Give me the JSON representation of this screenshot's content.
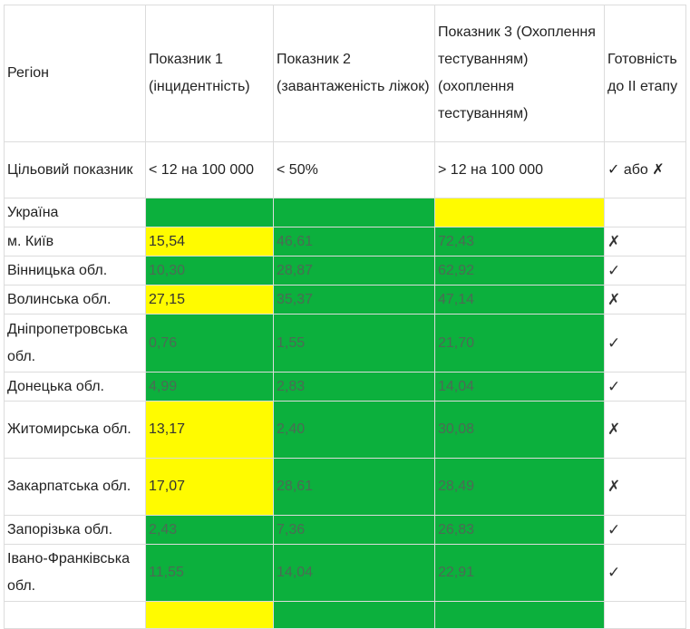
{
  "header": {
    "region": "Регіон",
    "ind1": "Показник 1 (інцидентність)",
    "ind2": "Показник 2 (завантаженість ліжок)",
    "ind3": "Показник 3 (Охоплення тестуванням) (охоплення тестуванням)",
    "ready": "Готовність до II етапу"
  },
  "target": {
    "label": "Цільовий показник",
    "ind1": "< 12 на 100 000",
    "ind2": "< 50%",
    "ind3": "> 12 на 100 000",
    "ready": "✓ або ✗"
  },
  "colors": {
    "green": "#0cb03d",
    "yellow": "#fffb00",
    "border": "#dcdcdc"
  },
  "rows": [
    {
      "region": "Україна",
      "v1": "",
      "v2": "",
      "v3": "",
      "c1": "green",
      "c2": "green",
      "c3": "yellow",
      "ready": ""
    },
    {
      "region": "м. Київ",
      "v1": "15,54",
      "v2": "46,61",
      "v3": "72,43",
      "c1": "yellow",
      "c2": "green",
      "c3": "green",
      "ready": "✗"
    },
    {
      "region": "Вінницька обл.",
      "v1": "10,30",
      "v2": "28,87",
      "v3": "62,92",
      "c1": "green",
      "c2": "green",
      "c3": "green",
      "ready": "✓"
    },
    {
      "region": "Волинська обл.",
      "v1": "27,15",
      "v2": "35,37",
      "v3": "47,14",
      "c1": "yellow",
      "c2": "green",
      "c3": "green",
      "ready": "✗"
    },
    {
      "region": "Дніпропетровська обл.",
      "v1": "0,76",
      "v2": "1,55",
      "v3": "21,70",
      "c1": "green",
      "c2": "green",
      "c3": "green",
      "ready": "✓"
    },
    {
      "region": "Донецька обл.",
      "v1": "4,99",
      "v2": "2,83",
      "v3": "14,04",
      "c1": "green",
      "c2": "green",
      "c3": "green",
      "ready": "✓"
    },
    {
      "region": "Житомирська обл.",
      "v1": "13,17",
      "v2": "2,40",
      "v3": "30,08",
      "c1": "yellow",
      "c2": "green",
      "c3": "green",
      "ready": "✗"
    },
    {
      "region": "Закарпатська обл.",
      "v1": "17,07",
      "v2": "28,61",
      "v3": "28,49",
      "c1": "yellow",
      "c2": "green",
      "c3": "green",
      "ready": "✗"
    },
    {
      "region": "Запорізька обл.",
      "v1": "2,43",
      "v2": "7,36",
      "v3": "26,83",
      "c1": "green",
      "c2": "green",
      "c3": "green",
      "ready": "✓"
    },
    {
      "region": "Івано-Франківська обл.",
      "v1": "11,55",
      "v2": "14,04",
      "v3": "22,91",
      "c1": "green",
      "c2": "green",
      "c3": "green",
      "ready": "✓"
    },
    {
      "region": "",
      "v1": "",
      "v2": "",
      "v3": "",
      "c1": "yellow",
      "c2": "green",
      "c3": "green",
      "ready": ""
    }
  ]
}
